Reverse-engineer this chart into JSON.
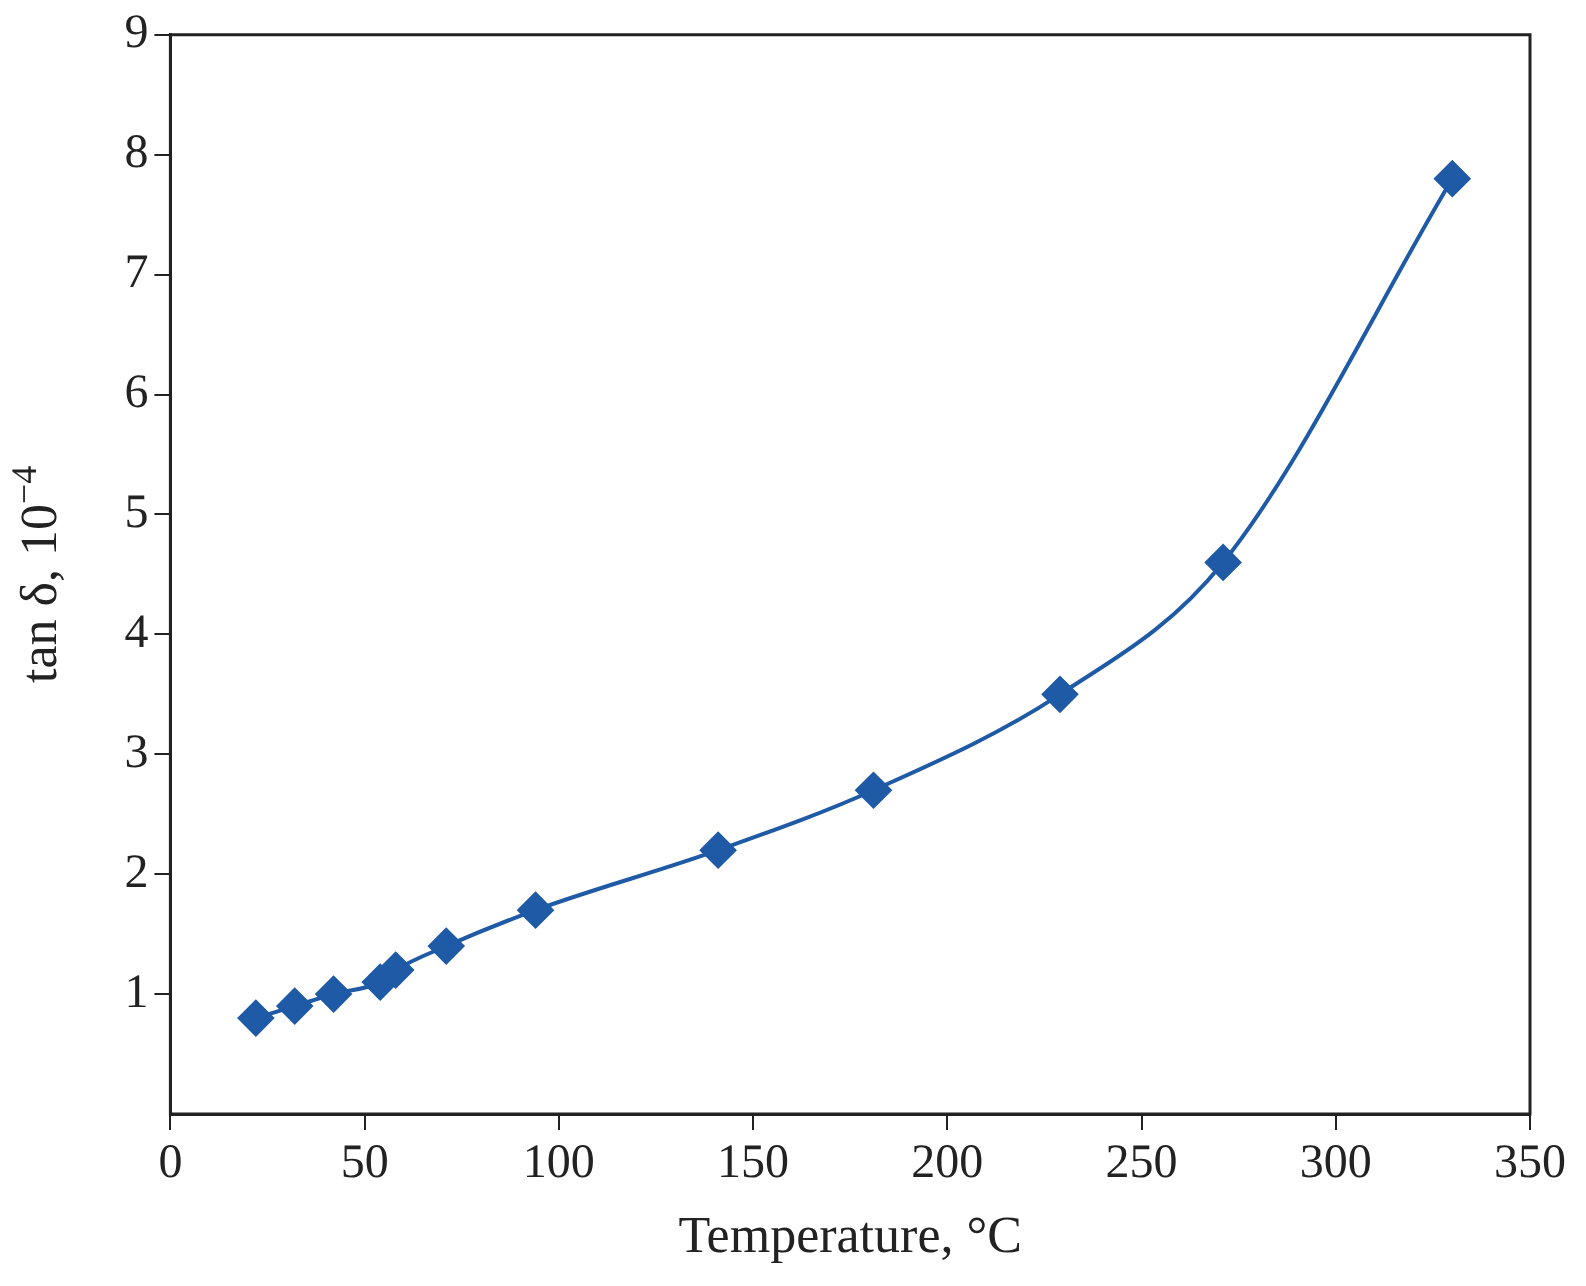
{
  "chart_data": {
    "type": "line",
    "xlabel": "Temperature, °C",
    "ylabel": "tan δ, 10$^{−4}$",
    "x": [
      22,
      32,
      42,
      54,
      58,
      71,
      94,
      141,
      181,
      229,
      271,
      330
    ],
    "series": [
      {
        "color": "#1f5aa6",
        "values": [
          0.8,
          0.9,
          1.0,
          1.1,
          1.2,
          1.4,
          1.7,
          2.2,
          2.7,
          3.5,
          4.6,
          7.8
        ]
      }
    ],
    "xlim": [
      0,
      350
    ],
    "xticks": [
      0,
      50,
      100,
      150,
      200,
      250,
      300,
      350
    ],
    "ylim": [
      0,
      9
    ],
    "yticks": [
      1,
      2,
      3,
      4,
      5,
      6,
      7,
      8,
      9
    ],
    "grid": false,
    "legend": false,
    "marker": "diamond",
    "line_style": "solid"
  }
}
